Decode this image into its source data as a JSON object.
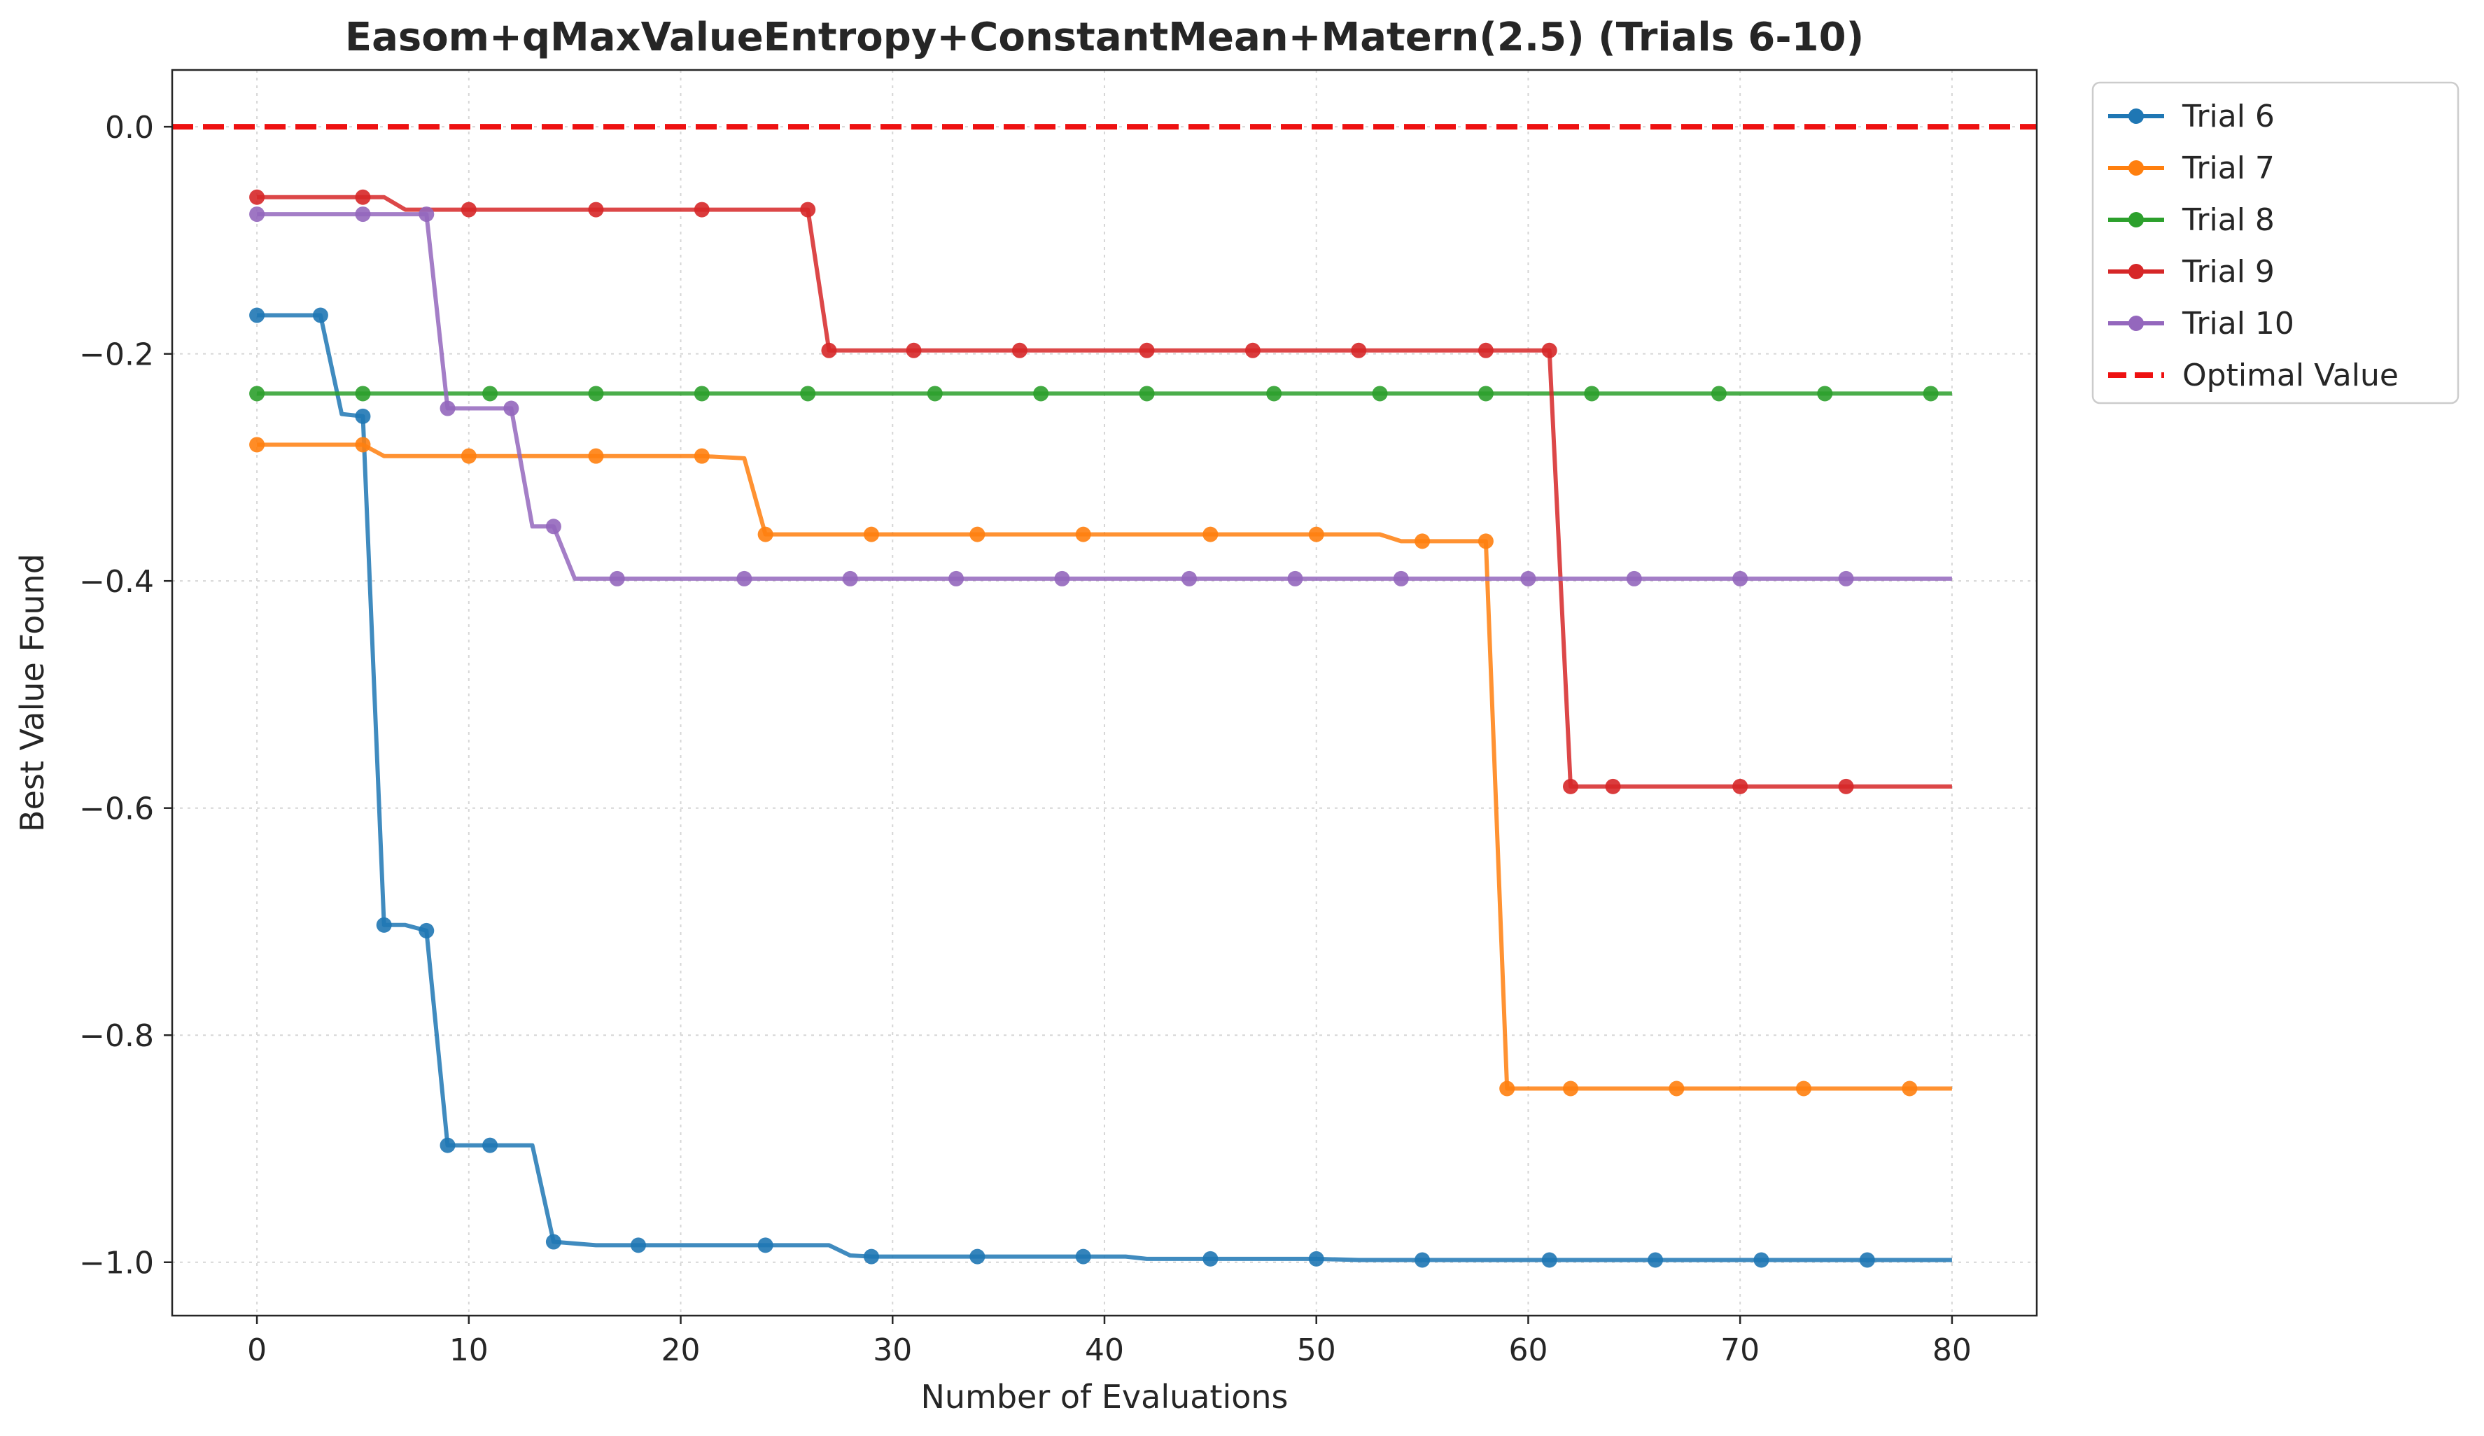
{
  "chart_data": {
    "type": "line",
    "title": "Easom+qMaxValueEntropy+ConstantMean+Matern(2.5) (Trials 6-10)",
    "xlabel": "Number of Evaluations",
    "ylabel": "Best Value Found",
    "xlim": [
      -4,
      84
    ],
    "ylim": [
      -1.047,
      0.05
    ],
    "xticks": [
      0,
      10,
      20,
      30,
      40,
      50,
      60,
      70,
      80
    ],
    "xtick_labels": [
      "0",
      "10",
      "20",
      "30",
      "40",
      "50",
      "60",
      "70",
      "80"
    ],
    "yticks": [
      0.0,
      -0.2,
      -0.4,
      -0.6,
      -0.8,
      -1.0
    ],
    "ytick_labels": [
      "0.0",
      "−0.2",
      "−0.4",
      "−0.6",
      "−0.8",
      "−1.0"
    ],
    "grid": true,
    "legend_position": "outside-top-right",
    "series": [
      {
        "name": "Trial 6",
        "color": "#1f77b4",
        "points": [
          [
            0,
            -0.166
          ],
          [
            3,
            -0.166
          ],
          [
            4,
            -0.253
          ],
          [
            5,
            -0.255
          ],
          [
            6,
            -0.703
          ],
          [
            7,
            -0.703
          ],
          [
            8,
            -0.708
          ],
          [
            9,
            -0.897
          ],
          [
            11,
            -0.897
          ],
          [
            13,
            -0.897
          ],
          [
            14,
            -0.982
          ],
          [
            16,
            -0.985
          ],
          [
            18,
            -0.985
          ],
          [
            24,
            -0.985
          ],
          [
            27,
            -0.985
          ],
          [
            28,
            -0.994
          ],
          [
            29,
            -0.995
          ],
          [
            34,
            -0.995
          ],
          [
            39,
            -0.995
          ],
          [
            41,
            -0.995
          ],
          [
            42,
            -0.997
          ],
          [
            45,
            -0.997
          ],
          [
            50,
            -0.997
          ],
          [
            52,
            -0.998
          ],
          [
            55,
            -0.998
          ],
          [
            61,
            -0.998
          ],
          [
            66,
            -0.998
          ],
          [
            71,
            -0.998
          ],
          [
            76,
            -0.998
          ],
          [
            80,
            -0.998
          ]
        ],
        "markers": [
          0,
          3,
          5,
          6,
          8,
          9,
          11,
          14,
          18,
          24,
          29,
          34,
          39,
          45,
          50,
          55,
          61,
          66,
          71,
          76
        ]
      },
      {
        "name": "Trial 7",
        "color": "#ff7f0e",
        "points": [
          [
            0,
            -0.28
          ],
          [
            5,
            -0.28
          ],
          [
            6,
            -0.29
          ],
          [
            10,
            -0.29
          ],
          [
            16,
            -0.29
          ],
          [
            21,
            -0.29
          ],
          [
            23,
            -0.292
          ],
          [
            24,
            -0.359
          ],
          [
            29,
            -0.359
          ],
          [
            34,
            -0.359
          ],
          [
            39,
            -0.359
          ],
          [
            45,
            -0.359
          ],
          [
            50,
            -0.359
          ],
          [
            53,
            -0.359
          ],
          [
            54,
            -0.365
          ],
          [
            55,
            -0.365
          ],
          [
            58,
            -0.365
          ],
          [
            59,
            -0.847
          ],
          [
            62,
            -0.847
          ],
          [
            67,
            -0.847
          ],
          [
            73,
            -0.847
          ],
          [
            78,
            -0.847
          ],
          [
            80,
            -0.847
          ]
        ],
        "markers": [
          0,
          5,
          10,
          16,
          21,
          24,
          29,
          34,
          39,
          45,
          50,
          55,
          58,
          59,
          62,
          67,
          73,
          78
        ]
      },
      {
        "name": "Trial 8",
        "color": "#2ca02c",
        "points": [
          [
            0,
            -0.235
          ],
          [
            80,
            -0.235
          ]
        ],
        "markers": [
          0,
          5,
          11,
          16,
          21,
          26,
          32,
          37,
          42,
          48,
          53,
          58,
          63,
          69,
          74,
          79
        ]
      },
      {
        "name": "Trial 9",
        "color": "#d62728",
        "points": [
          [
            0,
            -0.062
          ],
          [
            5,
            -0.062
          ],
          [
            6,
            -0.062
          ],
          [
            7,
            -0.073
          ],
          [
            10,
            -0.073
          ],
          [
            16,
            -0.073
          ],
          [
            21,
            -0.073
          ],
          [
            26,
            -0.073
          ],
          [
            27,
            -0.197
          ],
          [
            31,
            -0.197
          ],
          [
            36,
            -0.197
          ],
          [
            42,
            -0.197
          ],
          [
            47,
            -0.197
          ],
          [
            52,
            -0.197
          ],
          [
            58,
            -0.197
          ],
          [
            61,
            -0.197
          ],
          [
            62,
            -0.581
          ],
          [
            64,
            -0.581
          ],
          [
            70,
            -0.581
          ],
          [
            75,
            -0.581
          ],
          [
            80,
            -0.581
          ]
        ],
        "markers": [
          0,
          5,
          10,
          16,
          21,
          26,
          27,
          31,
          36,
          42,
          47,
          52,
          58,
          61,
          62,
          64,
          70,
          75
        ]
      },
      {
        "name": "Trial 10",
        "color": "#9467bd",
        "points": [
          [
            0,
            -0.077
          ],
          [
            5,
            -0.077
          ],
          [
            8,
            -0.077
          ],
          [
            9,
            -0.248
          ],
          [
            12,
            -0.248
          ],
          [
            13,
            -0.352
          ],
          [
            14,
            -0.352
          ],
          [
            15,
            -0.398
          ],
          [
            17,
            -0.398
          ],
          [
            23,
            -0.398
          ],
          [
            28,
            -0.398
          ],
          [
            33,
            -0.398
          ],
          [
            38,
            -0.398
          ],
          [
            44,
            -0.398
          ],
          [
            49,
            -0.398
          ],
          [
            54,
            -0.398
          ],
          [
            60,
            -0.398
          ],
          [
            65,
            -0.398
          ],
          [
            70,
            -0.398
          ],
          [
            75,
            -0.398
          ],
          [
            80,
            -0.398
          ]
        ],
        "markers": [
          0,
          5,
          8,
          9,
          12,
          14,
          17,
          23,
          28,
          33,
          38,
          44,
          49,
          54,
          60,
          65,
          70,
          75
        ]
      }
    ],
    "reference_line": {
      "name": "Optimal Value",
      "y": 0.0,
      "color": "#ee1111",
      "style": "dashed"
    }
  }
}
